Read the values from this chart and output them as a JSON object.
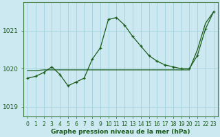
{
  "title": "Graphe pression niveau de la mer (hPa)",
  "bg_color": "#cce8f0",
  "grid_color": "#99ccd8",
  "line_color": "#1a5c1a",
  "x_values": [
    0,
    1,
    2,
    3,
    4,
    5,
    6,
    7,
    8,
    9,
    10,
    11,
    12,
    13,
    14,
    15,
    16,
    17,
    18,
    19,
    20,
    21,
    22,
    23
  ],
  "pressure": [
    1019.75,
    1019.8,
    1019.9,
    1020.05,
    1019.85,
    1019.55,
    1019.65,
    1019.75,
    1020.25,
    1020.55,
    1021.3,
    1021.35,
    1021.15,
    1020.85,
    1020.6,
    1020.35,
    1020.2,
    1020.1,
    1020.05,
    1020.0,
    1020.0,
    1020.35,
    1021.05,
    1021.5
  ],
  "trend": [
    1019.95,
    1019.95,
    1019.97,
    1019.97,
    1019.97,
    1019.97,
    1019.97,
    1019.97,
    1019.97,
    1019.97,
    1019.97,
    1019.97,
    1019.97,
    1019.97,
    1019.97,
    1019.97,
    1019.97,
    1019.97,
    1019.97,
    1019.97,
    1019.97,
    1020.5,
    1021.2,
    1021.5
  ],
  "ylim": [
    1018.75,
    1021.75
  ],
  "yticks": [
    1019,
    1020,
    1021
  ],
  "xlim": [
    -0.5,
    23.5
  ]
}
